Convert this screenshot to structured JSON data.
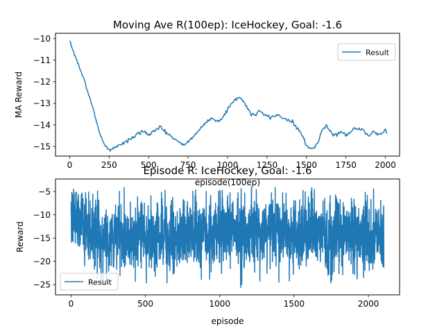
{
  "chart_data": [
    {
      "type": "line",
      "title": "Moving Ave R(100ep): IceHockey, Goal: -1.6",
      "xlabel": "episode(100ep)",
      "ylabel": "MA Reward",
      "xlim": [
        -90,
        2090
      ],
      "ylim": [
        -15.45,
        -9.75
      ],
      "xticks": [
        0,
        250,
        500,
        750,
        1000,
        1250,
        1500,
        1750,
        2000
      ],
      "yticks": [
        -15,
        -14,
        -13,
        -12,
        -11,
        -10
      ],
      "ytick_labels": [
        "−15",
        "−14",
        "−13",
        "−12",
        "−11",
        "−10"
      ],
      "legend": "upper right",
      "grid": false,
      "series": [
        {
          "name": "Result",
          "color": "#1f77b4",
          "x": [
            0,
            25,
            50,
            75,
            100,
            125,
            150,
            175,
            200,
            225,
            250,
            275,
            300,
            325,
            350,
            375,
            400,
            425,
            450,
            475,
            500,
            525,
            550,
            575,
            600,
            625,
            650,
            675,
            700,
            725,
            750,
            775,
            800,
            825,
            850,
            875,
            900,
            925,
            950,
            975,
            1000,
            1025,
            1050,
            1075,
            1100,
            1125,
            1150,
            1175,
            1200,
            1225,
            1250,
            1275,
            1300,
            1325,
            1350,
            1375,
            1400,
            1425,
            1450,
            1475,
            1500,
            1525,
            1550,
            1575,
            1600,
            1625,
            1650,
            1675,
            1700,
            1725,
            1750,
            1775,
            1800,
            1825,
            1850,
            1875,
            1900,
            1925,
            1950,
            1975,
            2000,
            2010
          ],
          "y": [
            -10.1,
            -10.6,
            -11.1,
            -11.6,
            -12.1,
            -12.7,
            -13.3,
            -14.0,
            -14.6,
            -15.0,
            -15.15,
            -15.1,
            -15.0,
            -14.9,
            -14.8,
            -14.7,
            -14.6,
            -14.45,
            -14.35,
            -14.3,
            -14.5,
            -14.3,
            -14.2,
            -14.1,
            -14.3,
            -14.4,
            -14.6,
            -14.7,
            -14.9,
            -14.9,
            -14.8,
            -14.6,
            -14.4,
            -14.2,
            -14.0,
            -13.8,
            -13.7,
            -13.8,
            -13.8,
            -13.6,
            -13.3,
            -13.0,
            -12.8,
            -12.75,
            -12.9,
            -13.2,
            -13.5,
            -13.6,
            -13.3,
            -13.5,
            -13.6,
            -13.65,
            -13.6,
            -13.5,
            -13.7,
            -13.75,
            -13.8,
            -14.0,
            -14.2,
            -14.5,
            -15.0,
            -15.1,
            -15.05,
            -14.8,
            -14.2,
            -14.0,
            -14.3,
            -14.5,
            -14.4,
            -14.3,
            -14.5,
            -14.4,
            -14.1,
            -14.2,
            -14.2,
            -14.4,
            -14.5,
            -14.3,
            -14.45,
            -14.4,
            -14.2,
            -14.4
          ]
        }
      ]
    },
    {
      "type": "line",
      "title": "Episode R: IceHockey, Goal: -1.6",
      "xlabel": "episode",
      "ylabel": "Reward",
      "xlim": [
        -105,
        2210
      ],
      "ylim": [
        -27.2,
        -2.3
      ],
      "xticks": [
        0,
        500,
        1000,
        1500,
        2000
      ],
      "yticks": [
        -25,
        -20,
        -15,
        -10,
        -5
      ],
      "ytick_labels": [
        "−25",
        "−20",
        "−15",
        "−10",
        "−5"
      ],
      "legend": "lower left",
      "grid": false,
      "series_note": "noisy per-episode rewards, roughly -26 to -4 around a mean near -14",
      "series": [
        {
          "name": "Result",
          "color": "#1f77b4",
          "episodes": 2105,
          "mean_by_episode": {
            "x": [
              0,
              50,
              100,
              150,
              200,
              250,
              300,
              400,
              500,
              600,
              700,
              750,
              800,
              900,
              1000,
              1050,
              1100,
              1200,
              1250,
              1300,
              1400,
              1500,
              1550,
              1600,
              1700,
              1800,
              1900,
              2000,
              2105
            ],
            "y": [
              -10.1,
              -11.5,
              -12.5,
              -14.0,
              -15.0,
              -15.1,
              -15.0,
              -14.6,
              -14.4,
              -14.2,
              -14.7,
              -14.9,
              -14.3,
              -13.8,
              -13.3,
              -12.8,
              -13.0,
              -13.5,
              -13.6,
              -13.6,
              -14.0,
              -14.9,
              -15.1,
              -14.3,
              -14.4,
              -14.2,
              -14.4,
              -14.3,
              -14.4
            ]
          },
          "min": -26,
          "max": -4
        }
      ]
    }
  ]
}
